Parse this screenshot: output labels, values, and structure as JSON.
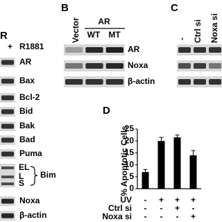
{
  "panel_a": {
    "header": "R",
    "treatment": "+",
    "treatment_label": "R1881",
    "labels": [
      "AR",
      "Bax",
      "Bcl-2",
      "Bid",
      "Bak",
      "Bad",
      "Puma"
    ],
    "bim": {
      "label": "Bim",
      "bands": [
        "EL",
        "L",
        "S"
      ]
    },
    "labels_lower": [
      "Noxa",
      "β-actin"
    ]
  },
  "panel_b": {
    "letter": "B",
    "lane": "Vector",
    "group": "AR",
    "group_lanes": [
      "WT",
      "MT"
    ],
    "labels": [
      "AR",
      "Noxa",
      "β-actin"
    ]
  },
  "panel_c": {
    "letter": "C",
    "lanes": [
      "-",
      "Ctrl si",
      "Noxa si"
    ]
  },
  "chart_data": {
    "type": "bar",
    "panel": "D",
    "ylabel": "% Apoptotic Cells",
    "values": [
      7,
      20,
      21.5,
      14
    ],
    "errors": [
      1,
      1.5,
      1,
      2
    ],
    "color": "#000000",
    "ylim": [
      0,
      25
    ],
    "yticks": [
      0,
      5,
      10,
      15,
      20,
      25
    ],
    "conditions": [
      {
        "name": "UV",
        "signs": [
          "-",
          "+",
          "+",
          "+"
        ]
      },
      {
        "name": "Ctrl si",
        "signs": [
          "-",
          "-",
          "+",
          "-"
        ]
      },
      {
        "name": "Noxa si",
        "signs": [
          "-",
          "-",
          "-",
          "+"
        ]
      }
    ]
  }
}
